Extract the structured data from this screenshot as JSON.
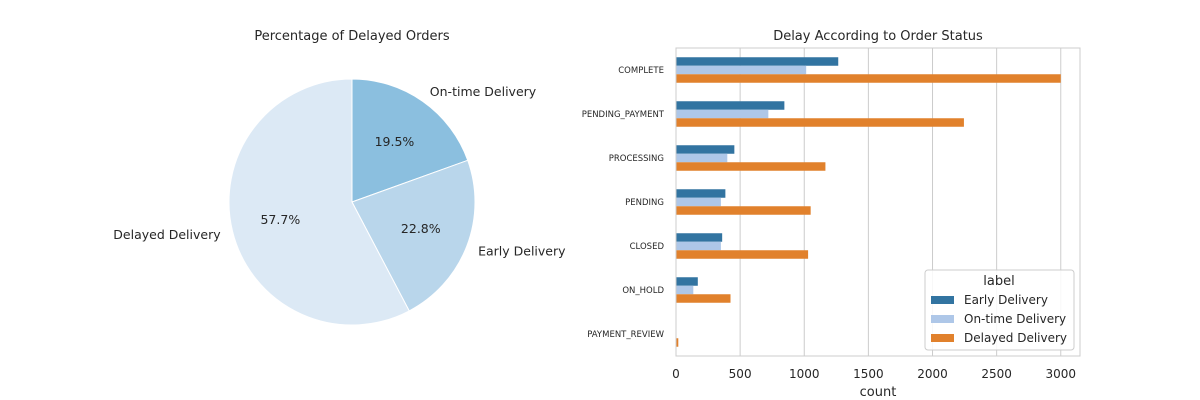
{
  "chart_data": [
    {
      "type": "pie",
      "title": "Percentage of Delayed Orders",
      "slices": [
        {
          "label": "On-time Delivery",
          "value": 19.5,
          "pct_label": "19.5%",
          "color": "#8bbfdf"
        },
        {
          "label": "Early Delivery",
          "value": 22.8,
          "pct_label": "22.8%",
          "color": "#b9d6eb"
        },
        {
          "label": "Delayed Delivery",
          "value": 57.7,
          "pct_label": "57.7%",
          "color": "#dce9f5"
        }
      ],
      "start_angle_deg": 90,
      "direction": "clockwise"
    },
    {
      "type": "bar",
      "orientation": "horizontal",
      "title": "Delay According to Order Status",
      "xlabel": "count",
      "ylabel": "",
      "xlim": [
        0,
        3150
      ],
      "xticks": [
        0,
        500,
        1000,
        1500,
        2000,
        2500,
        3000
      ],
      "categories": [
        "COMPLETE",
        "PENDING_PAYMENT",
        "PROCESSING",
        "PENDING",
        "CLOSED",
        "ON_HOLD",
        "PAYMENT_REVIEW"
      ],
      "series": [
        {
          "name": "Early Delivery",
          "color": "#3274a1",
          "values": [
            1265,
            845,
            455,
            385,
            360,
            170,
            0
          ]
        },
        {
          "name": "On-time Delivery",
          "color": "#aec7e8",
          "values": [
            1015,
            720,
            400,
            350,
            350,
            135,
            0
          ]
        },
        {
          "name": "Delayed Delivery",
          "color": "#e1812c",
          "values": [
            3000,
            2245,
            1165,
            1050,
            1030,
            425,
            18
          ]
        }
      ],
      "grid": "vertical",
      "legend": {
        "title": "label",
        "placement": "lower-right"
      }
    }
  ]
}
